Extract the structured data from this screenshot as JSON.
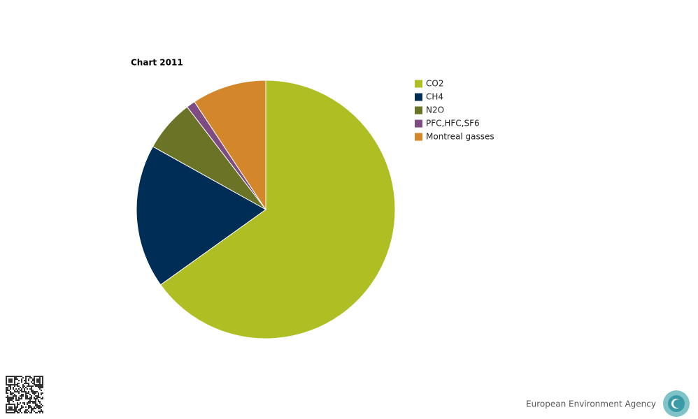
{
  "chart_data": {
    "type": "pie",
    "title": "Chart 2011",
    "categories": [
      "CO2",
      "CH4",
      "N2O",
      "PFC,HFC,SF6",
      "Montreal gasses"
    ],
    "values": [
      65.1,
      18.0,
      6.5,
      1.1,
      9.3
    ],
    "colors": [
      "#afbe22",
      "#002d56",
      "#6a7326",
      "#7e4b83",
      "#d3862a"
    ]
  },
  "footer": {
    "agency": "European Environment Agency"
  }
}
